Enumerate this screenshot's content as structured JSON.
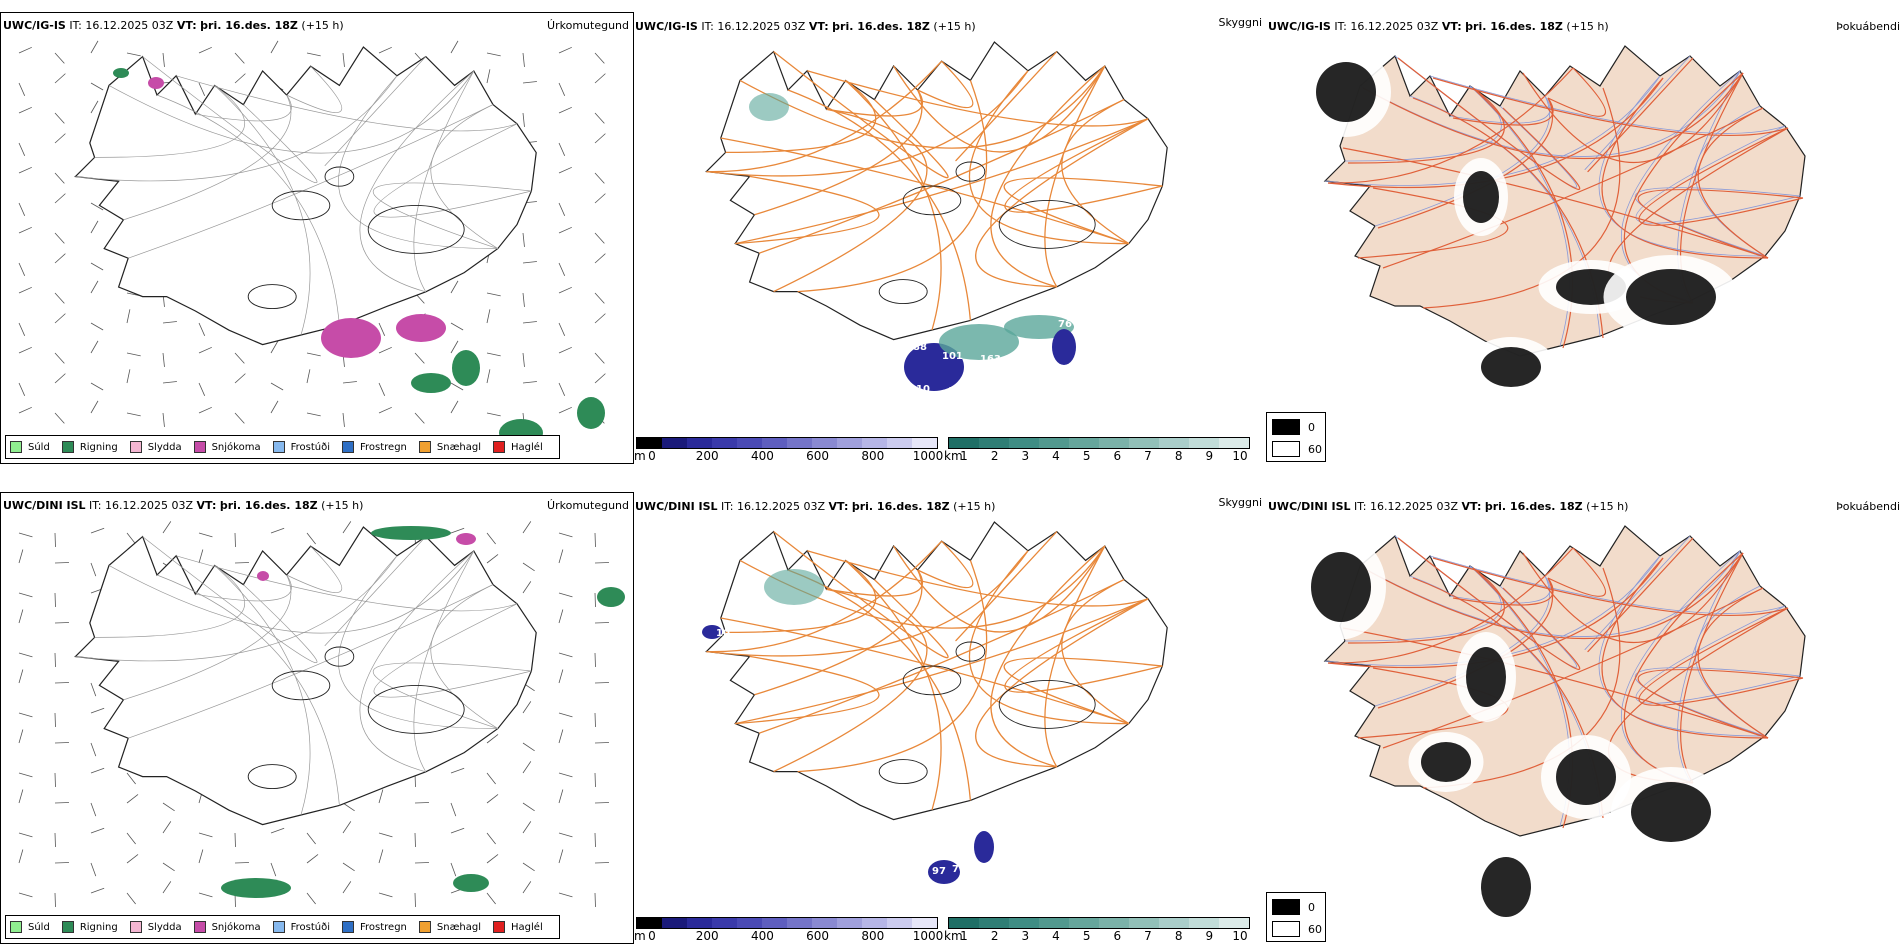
{
  "rows": [
    {
      "model": "UWC/IG-IS",
      "it_label": "IT:",
      "it_value": "16.12.2025 03Z",
      "vt_label": "VT:",
      "vt_value": "þri. 16.des. 18Z",
      "lead": "(+15 h)"
    },
    {
      "model": "UWC/DINI ISL",
      "it_label": "IT:",
      "it_value": "16.12.2025 03Z",
      "vt_label": "VT:",
      "vt_value": "þri. 16.des. 18Z",
      "lead": "(+15 h)"
    }
  ],
  "panel_titles": {
    "precip": "Úrkomutegund",
    "vis": "Skyggni",
    "fog": "Þokuábendi"
  },
  "precip_legend": [
    {
      "label": "Súld",
      "color": "#90ee90"
    },
    {
      "label": "Rigning",
      "color": "#2e8b57"
    },
    {
      "label": "Slydda",
      "color": "#f4b6d2"
    },
    {
      "label": "Snjókoma",
      "color": "#c64ca8"
    },
    {
      "label": "Frostúði",
      "color": "#87b9ee"
    },
    {
      "label": "Frostregn",
      "color": "#2f6fc4"
    },
    {
      "label": "Snæhagl",
      "color": "#f0a030"
    },
    {
      "label": "Haglél",
      "color": "#e02020"
    }
  ],
  "ceiling_scale": {
    "unit": "m",
    "ticks": [
      "0",
      "200",
      "400",
      "600",
      "800",
      "1000"
    ],
    "colors": [
      "#000000",
      "#1a1a7a",
      "#2a2a9a",
      "#3a3aaa",
      "#4a4ab5",
      "#5e5ebf",
      "#7474c8",
      "#8a8ad2",
      "#a0a0dc",
      "#b6b6e6",
      "#ccccef",
      "#e6e6f8"
    ]
  },
  "visibility_scale": {
    "unit": "km",
    "ticks": [
      "1",
      "2",
      "3",
      "4",
      "5",
      "6",
      "7",
      "8",
      "9",
      "10"
    ],
    "colors": [
      "#1f6f66",
      "#2f7e75",
      "#3f8d84",
      "#52998f",
      "#66a69c",
      "#7bb2a9",
      "#92c0b8",
      "#aaceca",
      "#c2ddd9",
      "#dcebe9"
    ]
  },
  "cloud_legend": [
    {
      "label": "0",
      "color": "#000000"
    },
    {
      "label": "60",
      "color": "#ffffff"
    }
  ],
  "map_labels": {
    "row0": [
      "88",
      "101",
      "163",
      "76",
      "10",
      "10"
    ],
    "row1": [
      "10",
      "97",
      "76"
    ]
  },
  "colors": {
    "coast": "#222222",
    "roads": "#e8883a",
    "fog_land": "#f2dccb",
    "fog_roads": "#e0603a",
    "fog_rivers": "#8a9ad8",
    "rain": "#2e8b57",
    "snow": "#c64ca8",
    "ceiling": "#2a2a9a",
    "vis": "#5aa69a"
  }
}
